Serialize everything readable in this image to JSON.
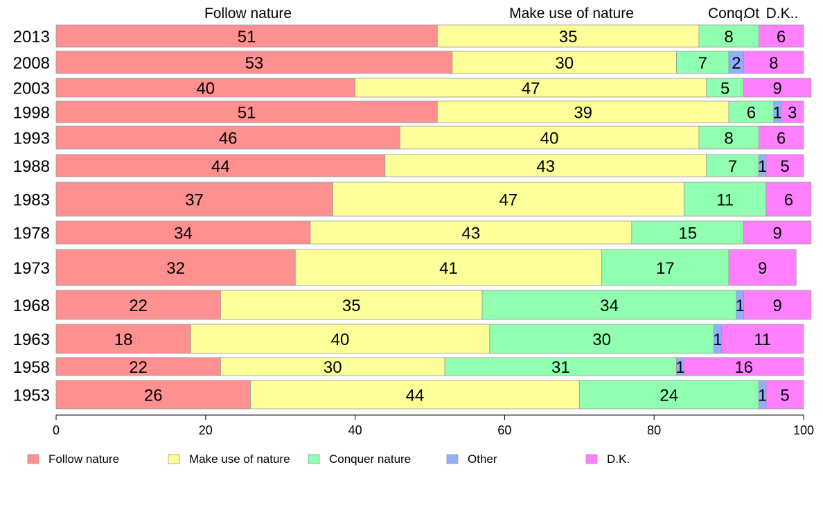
{
  "chart_data": {
    "type": "bar",
    "orientation": "horizontal",
    "stacked": true,
    "categories": [
      "2013",
      "2008",
      "2003",
      "1998",
      "1993",
      "1988",
      "1983",
      "1978",
      "1973",
      "1968",
      "1963",
      "1958",
      "1953"
    ],
    "series": [
      {
        "name": "Follow nature",
        "color": "#FF9090",
        "values": [
          51,
          53,
          40,
          51,
          46,
          44,
          37,
          34,
          32,
          22,
          18,
          22,
          26
        ]
      },
      {
        "name": "Make use of nature",
        "color": "#FFFF99",
        "values": [
          35,
          30,
          47,
          39,
          40,
          43,
          47,
          43,
          41,
          35,
          40,
          30,
          44
        ]
      },
      {
        "name": "Conquer nature",
        "color": "#90FFB0",
        "values": [
          8,
          7,
          5,
          6,
          8,
          7,
          11,
          15,
          17,
          34,
          30,
          31,
          24
        ]
      },
      {
        "name": "Other",
        "color": "#90B0FF",
        "values": [
          0,
          2,
          0,
          1,
          0,
          1,
          0,
          0,
          0,
          1,
          1,
          1,
          1
        ]
      },
      {
        "name": "D.K.",
        "color": "#FF80FF",
        "values": [
          6,
          8,
          9,
          3,
          6,
          5,
          6,
          9,
          9,
          9,
          11,
          16,
          5
        ]
      }
    ],
    "top_labels": [
      "Follow nature",
      "Make use of nature",
      "Conq.",
      "Ot",
      "D.K.."
    ],
    "xlim": [
      0,
      100
    ],
    "xticks": [
      "0",
      "20",
      "40",
      "60",
      "80",
      "100"
    ],
    "grid": false,
    "legend_position": "bottom"
  }
}
